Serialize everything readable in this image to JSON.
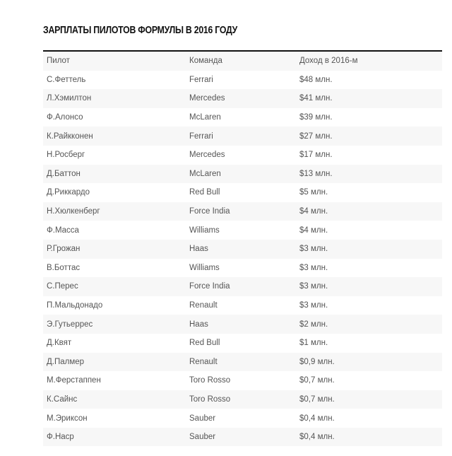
{
  "title": "ЗАРПЛАТЫ ПИЛОТОВ ФОРМУЛЫ В 2016 ГОДУ",
  "table": {
    "headers": [
      "Пилот",
      "Команда",
      "Доход в 2016-м"
    ],
    "rows": [
      [
        "С.Феттель",
        "Ferrari",
        "$48 млн."
      ],
      [
        "Л.Хэмилтон",
        "Mercedes",
        "$41 млн."
      ],
      [
        "Ф.Алонсо",
        "McLaren",
        "$39 млн."
      ],
      [
        "К.Райкконен",
        "Ferrari",
        "$27 млн."
      ],
      [
        "Н.Росберг",
        "Mercedes",
        "$17 млн."
      ],
      [
        "Д.Баттон",
        "McLaren",
        "$13 млн."
      ],
      [
        "Д.Риккардо",
        "Red Bull",
        "$5 млн."
      ],
      [
        "Н.Хюлкенберг",
        "Force India",
        "$4 млн."
      ],
      [
        "Ф.Масса",
        "Williams",
        "$4 млн."
      ],
      [
        "Р.Грожан",
        "Haas",
        "$3 млн."
      ],
      [
        "В.Боттас",
        "Williams",
        "$3 млн."
      ],
      [
        "С.Перес",
        "Force India",
        "$3 млн."
      ],
      [
        "П.Мальдонадо",
        "Renault",
        "$3 млн."
      ],
      [
        "Э.Гутьеррес",
        "Haas",
        "$2 млн."
      ],
      [
        "Д.Квят",
        "Red Bull",
        "$1 млн."
      ],
      [
        "Д.Палмер",
        "Renault",
        "$0,9 млн."
      ],
      [
        "М.Ферстаппен",
        "Toro Rosso",
        "$0,7 млн."
      ],
      [
        "К.Сайнс",
        "Toro Rosso",
        "$0,7 млн."
      ],
      [
        "М.Эриксон",
        "Sauber",
        "$0,4 млн."
      ],
      [
        "Ф.Наср",
        "Sauber",
        "$0,4 млн."
      ]
    ]
  }
}
